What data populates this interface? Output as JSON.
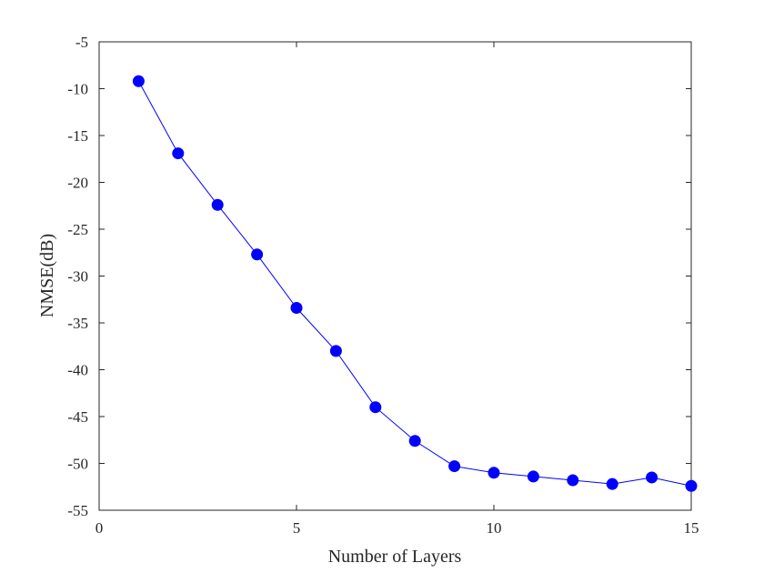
{
  "chart_data": {
    "type": "line",
    "title": "",
    "xlabel": "Number of Layers",
    "ylabel": "NMSE(dB)",
    "xlim": [
      0,
      15
    ],
    "ylim": [
      -55,
      -5
    ],
    "xticks": [
      0,
      5,
      10,
      15
    ],
    "yticks": [
      -5,
      -10,
      -15,
      -20,
      -25,
      -30,
      -35,
      -40,
      -45,
      -50,
      -55
    ],
    "xtick_labels": [
      "0",
      "5",
      "10",
      "15"
    ],
    "ytick_labels": [
      "-5",
      "-10",
      "-15",
      "-20",
      "-25",
      "-30",
      "-35",
      "-40",
      "-45",
      "-50",
      "-55"
    ],
    "grid": false,
    "series": [
      {
        "color": "#0000ff",
        "marker": "circle",
        "x": [
          1,
          2,
          3,
          4,
          5,
          6,
          7,
          8,
          9,
          10,
          11,
          12,
          13,
          14,
          15
        ],
        "y": [
          -9.2,
          -16.9,
          -22.4,
          -27.7,
          -33.4,
          -38.0,
          -44.0,
          -47.6,
          -50.3,
          -51.0,
          -51.4,
          -51.8,
          -52.2,
          -51.5,
          -52.4
        ]
      }
    ]
  }
}
